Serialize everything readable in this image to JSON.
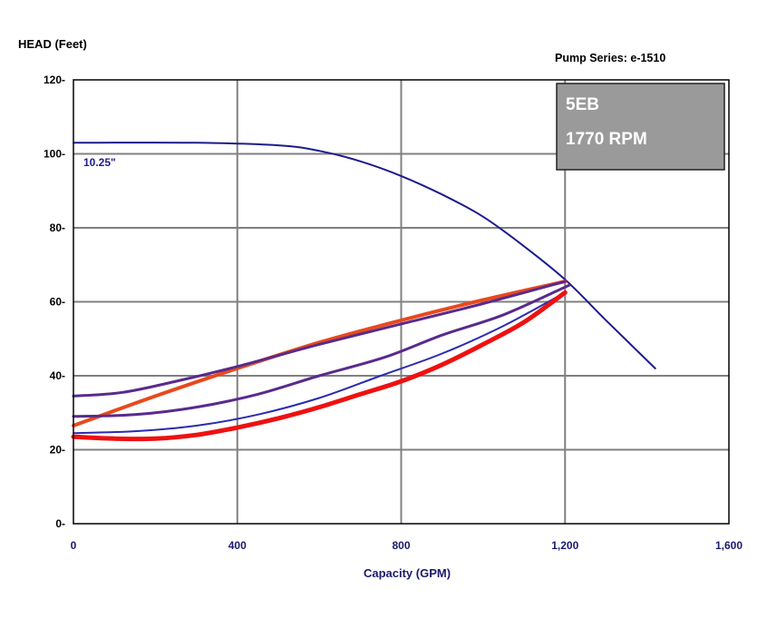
{
  "chart_data": {
    "type": "line",
    "title": "Pump Series: e-1510",
    "ylabel": "HEAD (Feet)",
    "xlabel": "Capacity (GPM)",
    "xlim": [
      0,
      1600
    ],
    "ylim": [
      0,
      120
    ],
    "x_ticks": [
      0,
      400,
      800,
      1200,
      1600
    ],
    "x_tick_labels": [
      "0",
      "400",
      "800",
      "1,200",
      "1,600"
    ],
    "y_ticks": [
      0,
      20,
      40,
      60,
      80,
      100,
      120
    ],
    "y_tick_labels": [
      "0-",
      "20-",
      "40-",
      "60-",
      "80-",
      "100-",
      "120-"
    ],
    "grid": true,
    "info_box": {
      "model": "5EB",
      "speed": "1770 RPM",
      "fill": "#9a9a9a"
    },
    "series": [
      {
        "label": "10.25\"",
        "color": "#1c1c8c",
        "width": 2,
        "x": [
          0,
          300,
          500,
          600,
          700,
          800,
          900,
          1000,
          1100,
          1200,
          1300,
          1420
        ],
        "y": [
          103,
          103,
          102.3,
          100.8,
          98,
          94,
          89,
          83,
          75,
          66,
          55,
          42
        ]
      },
      {
        "color": "#e8491d",
        "width": 4,
        "x": [
          0,
          200,
          400,
          600,
          800,
          1000,
          1200
        ],
        "y": [
          26.5,
          34.5,
          42,
          49,
          55,
          60.5,
          65.5
        ]
      },
      {
        "color": "#5a2a8c",
        "width": 3,
        "x": [
          0,
          120,
          250,
          400,
          600,
          800,
          1000,
          1200
        ],
        "y": [
          34.5,
          35.5,
          38.5,
          42.5,
          48.5,
          54,
          59.5,
          65.5
        ]
      },
      {
        "color": "#5a2a8c",
        "width": 3,
        "x": [
          0,
          150,
          300,
          450,
          600,
          760,
          900,
          1050,
          1210
        ],
        "y": [
          29,
          29.5,
          31.5,
          35,
          40,
          45,
          51,
          56.5,
          64.5
        ]
      },
      {
        "color": "#2b2bb0",
        "width": 2,
        "x": [
          0,
          150,
          300,
          450,
          600,
          750,
          900,
          1050,
          1200
        ],
        "y": [
          24.5,
          25,
          26.5,
          29.5,
          34,
          40,
          46,
          53.5,
          62.5
        ]
      },
      {
        "color": "#ee1111",
        "width": 5,
        "x": [
          0,
          100,
          200,
          300,
          400,
          500,
          600,
          700,
          800,
          900,
          1000,
          1100,
          1200
        ],
        "y": [
          23.5,
          23,
          23,
          24,
          26,
          28.5,
          31.5,
          35,
          38.5,
          43,
          48.5,
          54.5,
          62.5
        ]
      }
    ]
  }
}
